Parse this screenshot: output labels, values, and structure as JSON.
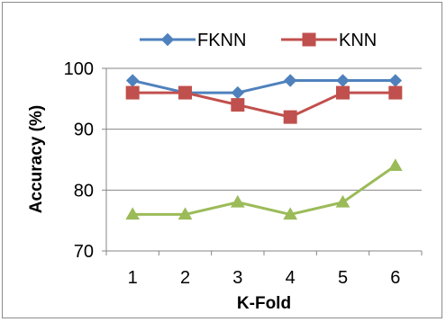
{
  "chart_data": {
    "type": "line",
    "title": "",
    "xlabel": "K-Fold",
    "ylabel": "Accuracy (%)",
    "categories": [
      "1",
      "2",
      "3",
      "4",
      "5",
      "6"
    ],
    "ylim": [
      70,
      100
    ],
    "yticks": [
      "70",
      "80",
      "90",
      "100"
    ],
    "grid": "horizontal",
    "legend_position": "top",
    "series": [
      {
        "name": "FKNN",
        "values": [
          98,
          96,
          96,
          98,
          98,
          98
        ],
        "color": "#4F81BD",
        "marker": "diamond"
      },
      {
        "name": "KNN",
        "values": [
          96,
          96,
          94,
          92,
          96,
          96
        ],
        "color": "#C0504D",
        "marker": "square"
      },
      {
        "values": [
          76,
          76,
          78,
          76,
          78,
          84
        ],
        "color": "#9BBB59",
        "marker": "triangle"
      }
    ]
  }
}
